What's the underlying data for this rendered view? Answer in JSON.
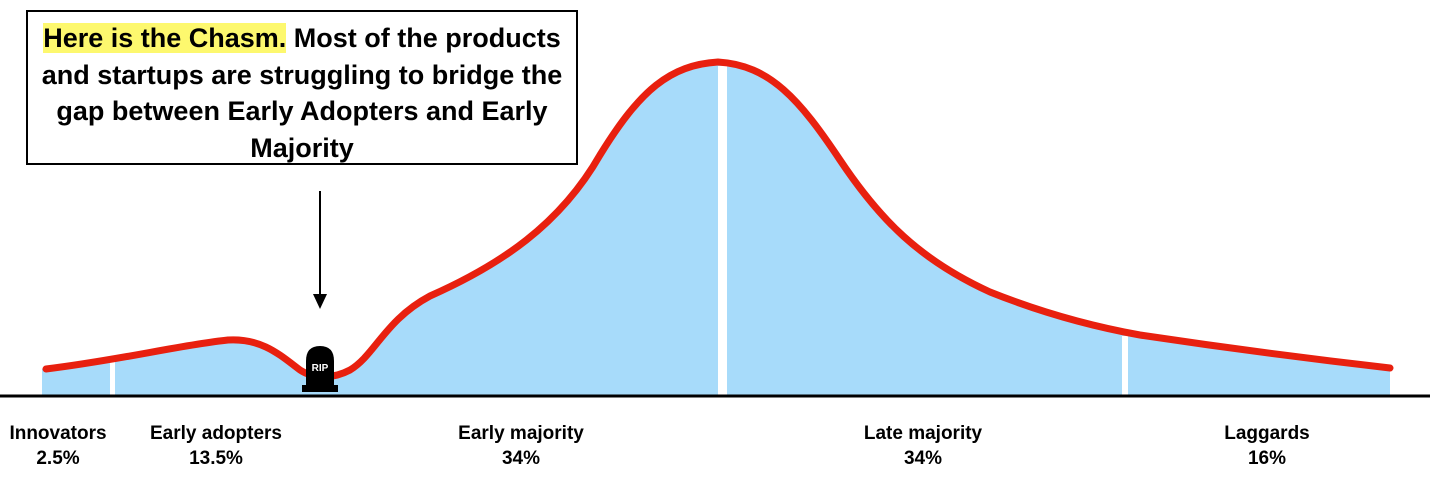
{
  "callout": {
    "highlight": "Here is the Chasm.",
    "text": " Most of the products and startups are struggling to bridge the gap between Early Adopters and Early Majority"
  },
  "tombstone": {
    "text": "RIP"
  },
  "segments": [
    {
      "name": "Innovators",
      "percent": "2.5%"
    },
    {
      "name": "Early adopters",
      "percent": "13.5%"
    },
    {
      "name": "Early majority",
      "percent": "34%"
    },
    {
      "name": "Late majority",
      "percent": "34%"
    },
    {
      "name": "Laggards",
      "percent": "16%"
    }
  ],
  "colors": {
    "fill": "#a7dbfa",
    "curve": "#e8200f",
    "highlight": "#fdf86e",
    "axis": "#000000"
  }
}
